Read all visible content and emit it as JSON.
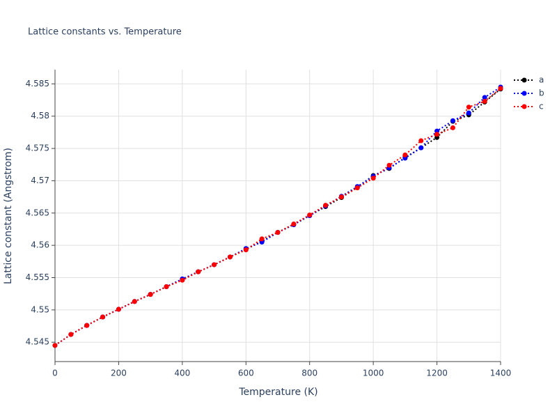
{
  "chart_data": {
    "type": "line",
    "title": "Lattice constants vs. Temperature",
    "xlabel": "Temperature (K)",
    "ylabel": "Lattice constant (Angstrom)",
    "x": [
      0,
      50,
      100,
      150,
      200,
      250,
      300,
      350,
      400,
      450,
      500,
      550,
      600,
      650,
      700,
      750,
      800,
      850,
      900,
      950,
      1000,
      1050,
      1100,
      1150,
      1200,
      1250,
      1300,
      1350,
      1400
    ],
    "series": [
      {
        "name": "a",
        "color": "#000000",
        "values": [
          4.5445,
          4.5462,
          4.5476,
          4.5489,
          4.5501,
          4.5513,
          4.5524,
          4.5536,
          4.5547,
          4.5559,
          4.557,
          4.5582,
          4.5594,
          4.5606,
          4.562,
          4.5632,
          4.5646,
          4.566,
          4.5674,
          4.569,
          4.5708,
          4.5719,
          4.5736,
          4.5751,
          4.5767,
          4.5792,
          4.5802,
          4.5822,
          4.5842
        ]
      },
      {
        "name": "b",
        "color": "#0000ff",
        "values": [
          4.5445,
          4.5462,
          4.5476,
          4.5489,
          4.5501,
          4.5513,
          4.5524,
          4.5536,
          4.5548,
          4.5559,
          4.557,
          4.5582,
          4.5595,
          4.5605,
          4.562,
          4.5632,
          4.5646,
          4.5661,
          4.5676,
          4.5691,
          4.5707,
          4.572,
          4.5735,
          4.5751,
          4.5777,
          4.5793,
          4.5805,
          4.5829,
          4.5845
        ]
      },
      {
        "name": "c",
        "color": "#ff0000",
        "values": [
          4.5445,
          4.5462,
          4.5476,
          4.5489,
          4.5501,
          4.5513,
          4.5524,
          4.5536,
          4.5546,
          4.5559,
          4.557,
          4.5582,
          4.5593,
          4.561,
          4.562,
          4.5633,
          4.5647,
          4.5662,
          4.5675,
          4.5689,
          4.5704,
          4.5724,
          4.574,
          4.5762,
          4.5772,
          4.5782,
          4.5814,
          4.5823,
          4.5843
        ]
      }
    ],
    "xlim": [
      0,
      1400
    ],
    "xticks": [
      0,
      200,
      400,
      600,
      800,
      1000,
      1200,
      1400
    ],
    "ylim": [
      4.542,
      4.5872
    ],
    "yticks": [
      4.545,
      4.55,
      4.555,
      4.56,
      4.565,
      4.57,
      4.575,
      4.58,
      4.585
    ],
    "grid": true,
    "legend": "right"
  }
}
